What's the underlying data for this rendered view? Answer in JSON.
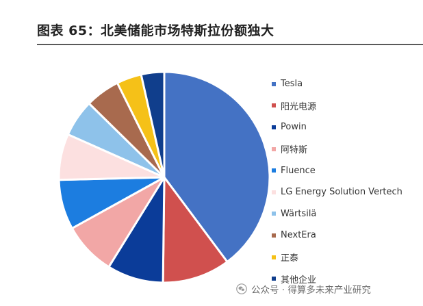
{
  "title": "图表 65：北美储能市场特斯拉份额独大",
  "watermark": {
    "text": "公众号 · 得算多未来产业研究",
    "icon": "wechat-icon"
  },
  "chart_data": {
    "type": "pie",
    "title": "",
    "legend_position": "right",
    "slices": [
      {
        "name": "Tesla",
        "value": 40.6,
        "color": "#4472C4"
      },
      {
        "name": "阳光电源",
        "value": 10.6,
        "color": "#D0504E"
      },
      {
        "name": "Powin",
        "value": 8.8,
        "color": "#0B3C99"
      },
      {
        "name": "阿特斯",
        "value": 8.3,
        "color": "#F2A7A6"
      },
      {
        "name": "Fluence",
        "value": 7.8,
        "color": "#1C7DE0"
      },
      {
        "name": "LG Energy Solution Vertech",
        "value": 7.2,
        "color": "#FCE0E0"
      },
      {
        "name": "Wärtsilä",
        "value": 5.8,
        "color": "#8EC2EA"
      },
      {
        "name": "NextEra",
        "value": 5.4,
        "color": "#A86A4E"
      },
      {
        "name": "正泰",
        "value": 3.9,
        "color": "#F5C118"
      },
      {
        "name": "其他企业",
        "value": 3.6,
        "color": "#103E8C"
      }
    ]
  }
}
